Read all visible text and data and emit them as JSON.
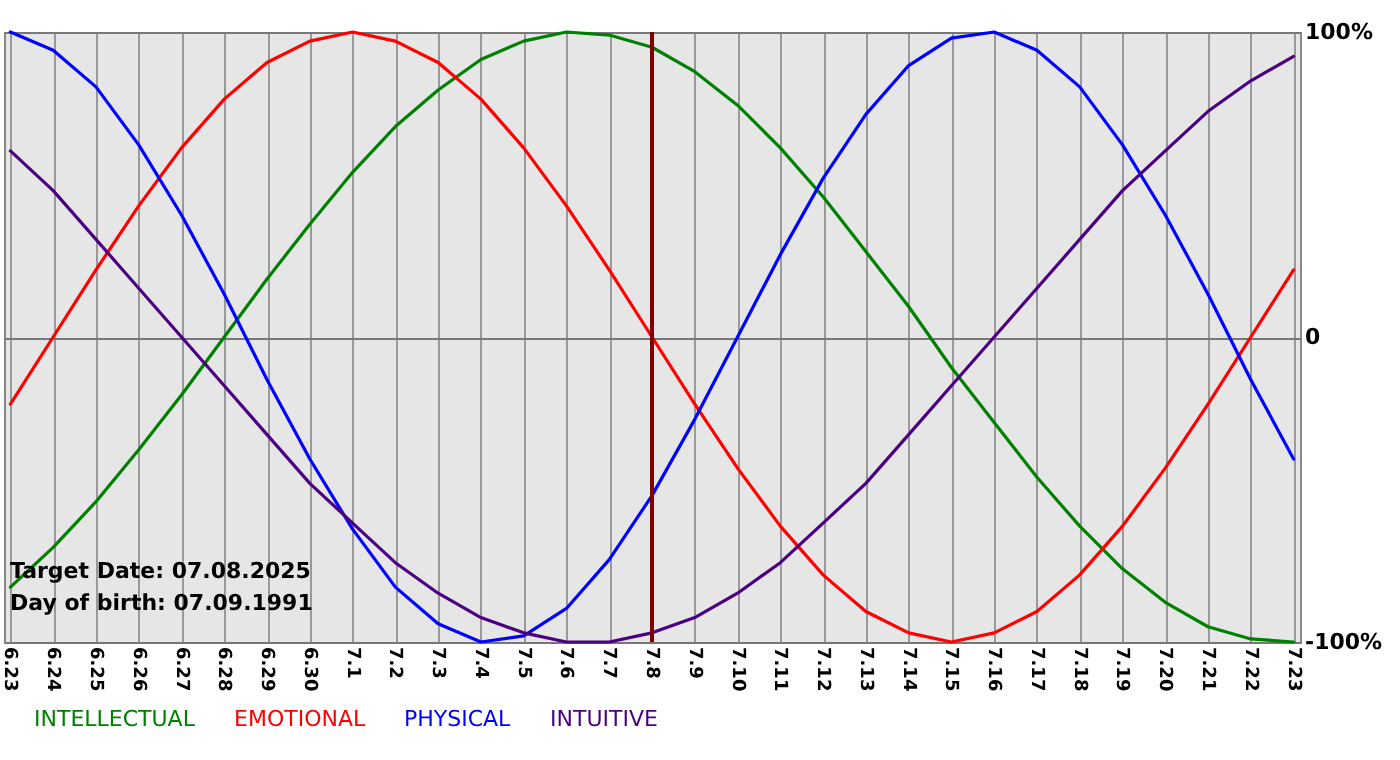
{
  "chart_data": {
    "type": "line",
    "categories": [
      "6.23",
      "6.24",
      "6.25",
      "6.26",
      "6.27",
      "6.28",
      "6.29",
      "6.30",
      "7.1",
      "7.2",
      "7.3",
      "7.4",
      "7.5",
      "7.6",
      "7.7",
      "7.8",
      "7.9",
      "7.10",
      "7.11",
      "7.12",
      "7.13",
      "7.14",
      "7.15",
      "7.16",
      "7.17",
      "7.18",
      "7.19",
      "7.20",
      "7.21",
      "7.22",
      "7.23"
    ],
    "series": [
      {
        "name": "INTELLECTUAL",
        "color": "#008000",
        "values": [
          -82,
          -69,
          -54,
          -37,
          -19,
          0,
          19,
          37,
          54,
          69,
          81,
          91,
          97,
          100,
          99,
          95,
          87,
          76,
          62,
          46,
          28,
          10,
          -10,
          -28,
          -46,
          -62,
          -76,
          -87,
          -95,
          -99,
          -100
        ]
      },
      {
        "name": "EMOTIONAL",
        "color": "#ff0000",
        "values": [
          -22,
          0,
          22,
          43,
          62,
          78,
          90,
          97,
          100,
          97,
          90,
          78,
          62,
          43,
          22,
          0,
          -22,
          -43,
          -62,
          -78,
          -90,
          -97,
          -100,
          -97,
          -90,
          -78,
          -62,
          -43,
          -22,
          0,
          22
        ]
      },
      {
        "name": "PHYSICAL",
        "color": "#0000ff",
        "values": [
          100,
          94,
          82,
          63,
          40,
          14,
          -14,
          -40,
          -63,
          -82,
          -94,
          -100,
          -98,
          -89,
          -73,
          -52,
          -27,
          0,
          27,
          52,
          73,
          89,
          98,
          100,
          94,
          82,
          63,
          40,
          14,
          -14,
          -40
        ]
      },
      {
        "name": "INTUITIVE",
        "color": "#4b0082",
        "values": [
          61,
          48,
          32,
          16,
          0,
          -16,
          -32,
          -48,
          -61,
          -74,
          -84,
          -92,
          -97,
          -100,
          -100,
          -97,
          -92,
          -84,
          -74,
          -61,
          -48,
          -32,
          -16,
          0,
          16,
          32,
          48,
          61,
          74,
          84,
          92
        ]
      }
    ],
    "ylim": [
      -100,
      100
    ],
    "yticks": [
      {
        "value": 100,
        "label": "100%"
      },
      0,
      {
        "value": -100,
        "label": "-100%"
      }
    ],
    "ref_lines": [
      {
        "axis": "x",
        "value": "7.8",
        "color": "#800000"
      }
    ],
    "annotations": [
      "Target Date: 07.08.2025",
      "Day of birth: 07.09.1991"
    ],
    "grid": true,
    "legend": "bottom left"
  }
}
